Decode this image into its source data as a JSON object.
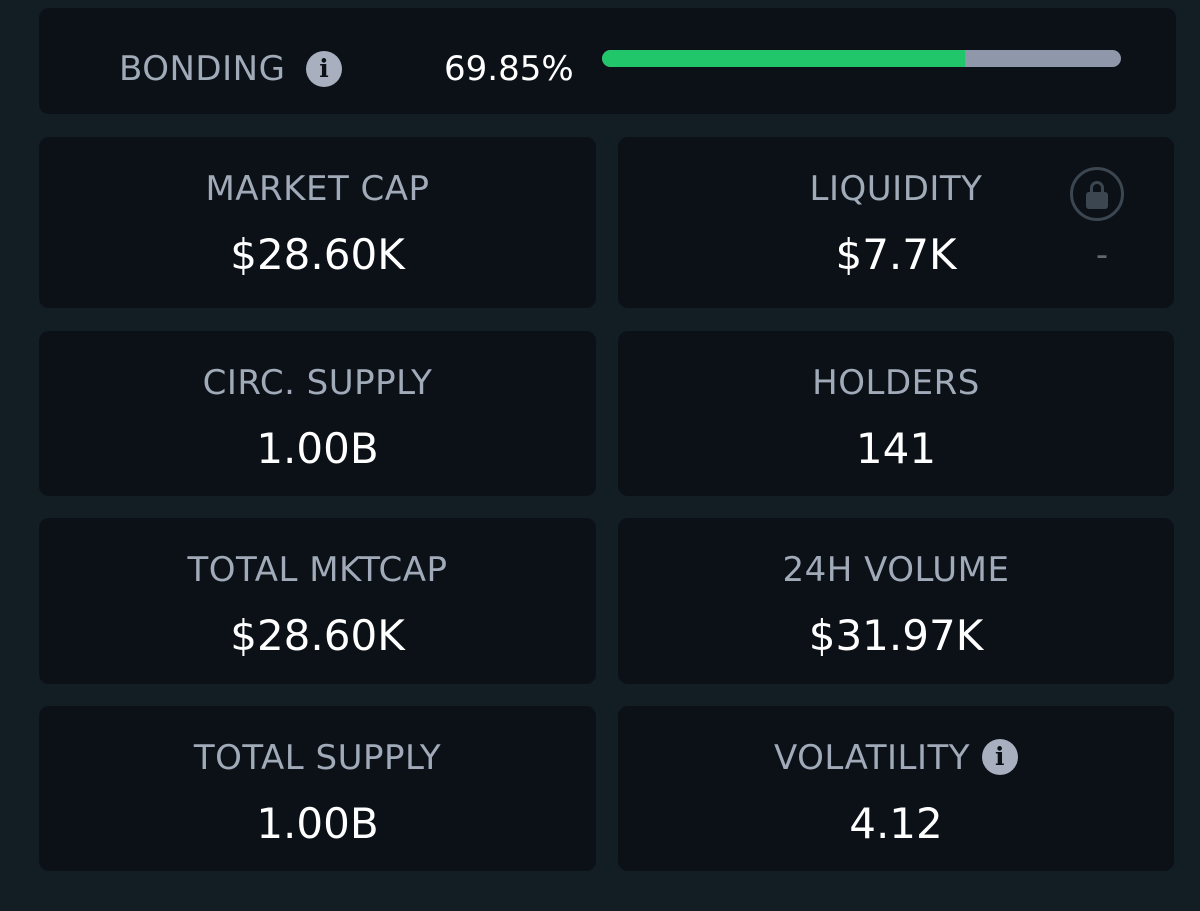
{
  "bonding": {
    "label": "BONDING",
    "info_icon": "info-icon",
    "percent_text": "69.85%",
    "progress": 0.6985,
    "colors": {
      "fill": "#22c66a",
      "track": "#8f98ab"
    }
  },
  "stats": {
    "market_cap": {
      "label": "MARKET CAP",
      "value": "$28.60K"
    },
    "liquidity": {
      "label": "LIQUIDITY",
      "value": "$7.7K",
      "lock_icon": "lock-icon",
      "lock_value": "-"
    },
    "circ_supply": {
      "label": "CIRC. SUPPLY",
      "value": "1.00B"
    },
    "holders": {
      "label": "HOLDERS",
      "value": "141"
    },
    "total_mktcap": {
      "label": "TOTAL MKTCAP",
      "value": "$28.60K"
    },
    "volume_24h": {
      "label": "24H VOLUME",
      "value": "$31.97K"
    },
    "total_supply": {
      "label": "TOTAL SUPPLY",
      "value": "1.00B"
    },
    "volatility": {
      "label": "VOLATILITY",
      "value": "4.12",
      "info_icon": "info-icon"
    }
  }
}
